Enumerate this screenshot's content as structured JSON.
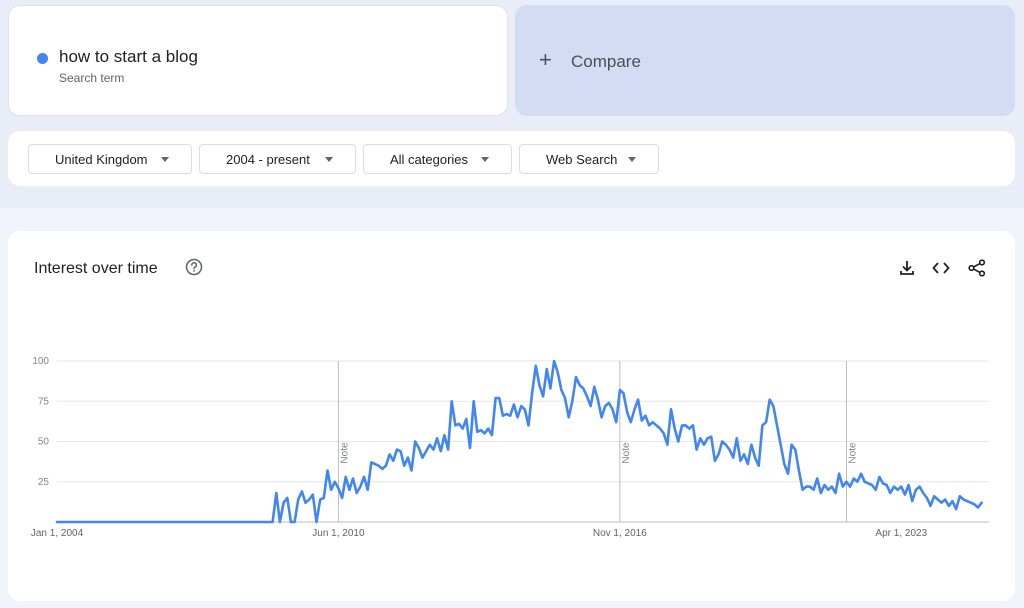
{
  "search": {
    "term": "how to start a blog",
    "term_sub": "Search term",
    "term_color": "#4285f4",
    "compare_icon": "+",
    "compare_label": "Compare"
  },
  "filters": [
    {
      "label": "United Kingdom",
      "icon": "caret-down-icon"
    },
    {
      "label": "2004 - present",
      "icon": "caret-down-icon"
    },
    {
      "label": "All categories",
      "icon": "caret-down-icon"
    },
    {
      "label": "Web Search",
      "icon": "caret-down-icon"
    }
  ],
  "chart_card": {
    "title": "Interest over time",
    "help_icon": "help-circle-icon",
    "tools": [
      "download-icon",
      "embed-code-icon",
      "share-icon"
    ]
  },
  "chart_data": {
    "type": "line",
    "title": "",
    "xlabel": "",
    "ylabel": "",
    "ylim": [
      0,
      100
    ],
    "y_ticks": [
      25,
      50,
      75,
      100
    ],
    "x_range": [
      "2004-01",
      "2025-04"
    ],
    "x_ticks": [
      {
        "date": "2004-01",
        "label": "Jan 1, 2004"
      },
      {
        "date": "2010-06",
        "label": "Jun 1, 2010"
      },
      {
        "date": "2016-11",
        "label": "Nov 1, 2016"
      },
      {
        "date": "2023-04",
        "label": "Apr 1, 2023"
      }
    ],
    "notes": [
      {
        "date": "2010-06",
        "label": "Note"
      },
      {
        "date": "2016-11",
        "label": "Note"
      },
      {
        "date": "2022-01",
        "label": "Note"
      }
    ],
    "grid": true,
    "line_color": "#4285f4",
    "series": [
      {
        "points": [
          [
            "2004-01",
            0
          ],
          [
            "2008-12",
            0
          ],
          [
            "2009-01",
            18
          ],
          [
            "2009-02",
            0
          ],
          [
            "2009-03",
            12
          ],
          [
            "2009-04",
            15
          ],
          [
            "2009-05",
            0
          ],
          [
            "2009-06",
            0
          ],
          [
            "2009-07",
            14
          ],
          [
            "2009-08",
            19
          ],
          [
            "2009-09",
            12
          ],
          [
            "2009-10",
            14
          ],
          [
            "2009-11",
            17
          ],
          [
            "2009-12",
            0
          ],
          [
            "2010-01",
            14
          ],
          [
            "2010-02",
            15
          ],
          [
            "2010-03",
            32
          ],
          [
            "2010-04",
            20
          ],
          [
            "2010-05",
            25
          ],
          [
            "2010-06",
            21
          ],
          [
            "2010-07",
            15
          ],
          [
            "2010-08",
            28
          ],
          [
            "2010-09",
            20
          ],
          [
            "2010-10",
            27
          ],
          [
            "2010-11",
            18
          ],
          [
            "2010-12",
            22
          ],
          [
            "2011-01",
            28
          ],
          [
            "2011-02",
            20
          ],
          [
            "2011-03",
            37
          ],
          [
            "2011-04",
            36
          ],
          [
            "2011-05",
            35
          ],
          [
            "2011-06",
            33
          ],
          [
            "2011-07",
            35
          ],
          [
            "2011-08",
            42
          ],
          [
            "2011-09",
            38
          ],
          [
            "2011-10",
            45
          ],
          [
            "2011-11",
            44
          ],
          [
            "2011-12",
            35
          ],
          [
            "2012-01",
            40
          ],
          [
            "2012-02",
            32
          ],
          [
            "2012-03",
            50
          ],
          [
            "2012-04",
            46
          ],
          [
            "2012-05",
            40
          ],
          [
            "2012-06",
            44
          ],
          [
            "2012-07",
            48
          ],
          [
            "2012-08",
            45
          ],
          [
            "2012-09",
            52
          ],
          [
            "2012-10",
            44
          ],
          [
            "2012-11",
            54
          ],
          [
            "2012-12",
            45
          ],
          [
            "2013-01",
            75
          ],
          [
            "2013-02",
            60
          ],
          [
            "2013-03",
            61
          ],
          [
            "2013-04",
            58
          ],
          [
            "2013-05",
            64
          ],
          [
            "2013-06",
            46
          ],
          [
            "2013-07",
            75
          ],
          [
            "2013-08",
            56
          ],
          [
            "2013-09",
            57
          ],
          [
            "2013-10",
            55
          ],
          [
            "2013-11",
            58
          ],
          [
            "2013-12",
            54
          ],
          [
            "2014-01",
            77
          ],
          [
            "2014-02",
            77
          ],
          [
            "2014-03",
            66
          ],
          [
            "2014-04",
            67
          ],
          [
            "2014-05",
            66
          ],
          [
            "2014-06",
            73
          ],
          [
            "2014-07",
            65
          ],
          [
            "2014-08",
            72
          ],
          [
            "2014-09",
            70
          ],
          [
            "2014-10",
            60
          ],
          [
            "2014-11",
            80
          ],
          [
            "2014-12",
            97
          ],
          [
            "2015-01",
            85
          ],
          [
            "2015-02",
            78
          ],
          [
            "2015-03",
            95
          ],
          [
            "2015-04",
            83
          ],
          [
            "2015-05",
            100
          ],
          [
            "2015-06",
            93
          ],
          [
            "2015-07",
            82
          ],
          [
            "2015-08",
            77
          ],
          [
            "2015-09",
            65
          ],
          [
            "2015-10",
            75
          ],
          [
            "2015-11",
            90
          ],
          [
            "2015-12",
            85
          ],
          [
            "2016-01",
            83
          ],
          [
            "2016-02",
            78
          ],
          [
            "2016-03",
            72
          ],
          [
            "2016-04",
            84
          ],
          [
            "2016-05",
            76
          ],
          [
            "2016-06",
            65
          ],
          [
            "2016-07",
            72
          ],
          [
            "2016-08",
            74
          ],
          [
            "2016-09",
            70
          ],
          [
            "2016-10",
            62
          ],
          [
            "2016-11",
            82
          ],
          [
            "2016-12",
            80
          ],
          [
            "2017-01",
            68
          ],
          [
            "2017-02",
            62
          ],
          [
            "2017-03",
            70
          ],
          [
            "2017-04",
            76
          ],
          [
            "2017-05",
            63
          ],
          [
            "2017-06",
            66
          ],
          [
            "2017-07",
            60
          ],
          [
            "2017-08",
            62
          ],
          [
            "2017-09",
            60
          ],
          [
            "2017-10",
            58
          ],
          [
            "2017-11",
            55
          ],
          [
            "2017-12",
            48
          ],
          [
            "2018-01",
            70
          ],
          [
            "2018-02",
            58
          ],
          [
            "2018-03",
            50
          ],
          [
            "2018-04",
            60
          ],
          [
            "2018-05",
            60
          ],
          [
            "2018-06",
            58
          ],
          [
            "2018-07",
            60
          ],
          [
            "2018-08",
            45
          ],
          [
            "2018-09",
            52
          ],
          [
            "2018-10",
            48
          ],
          [
            "2018-11",
            52
          ],
          [
            "2018-12",
            53
          ],
          [
            "2019-01",
            38
          ],
          [
            "2019-02",
            42
          ],
          [
            "2019-03",
            50
          ],
          [
            "2019-04",
            48
          ],
          [
            "2019-05",
            45
          ],
          [
            "2019-06",
            40
          ],
          [
            "2019-07",
            52
          ],
          [
            "2019-08",
            38
          ],
          [
            "2019-09",
            42
          ],
          [
            "2019-10",
            36
          ],
          [
            "2019-11",
            48
          ],
          [
            "2019-12",
            40
          ],
          [
            "2020-01",
            35
          ],
          [
            "2020-02",
            60
          ],
          [
            "2020-03",
            62
          ],
          [
            "2020-04",
            76
          ],
          [
            "2020-05",
            72
          ],
          [
            "2020-06",
            60
          ],
          [
            "2020-07",
            48
          ],
          [
            "2020-08",
            36
          ],
          [
            "2020-09",
            30
          ],
          [
            "2020-10",
            48
          ],
          [
            "2020-11",
            45
          ],
          [
            "2020-12",
            32
          ],
          [
            "2021-01",
            20
          ],
          [
            "2021-02",
            22
          ],
          [
            "2021-03",
            22
          ],
          [
            "2021-04",
            20
          ],
          [
            "2021-05",
            27
          ],
          [
            "2021-06",
            18
          ],
          [
            "2021-07",
            23
          ],
          [
            "2021-08",
            20
          ],
          [
            "2021-09",
            22
          ],
          [
            "2021-10",
            18
          ],
          [
            "2021-11",
            30
          ],
          [
            "2021-12",
            22
          ],
          [
            "2022-01",
            25
          ],
          [
            "2022-02",
            22
          ],
          [
            "2022-03",
            27
          ],
          [
            "2022-04",
            25
          ],
          [
            "2022-05",
            30
          ],
          [
            "2022-06",
            25
          ],
          [
            "2022-07",
            24
          ],
          [
            "2022-08",
            23
          ],
          [
            "2022-09",
            20
          ],
          [
            "2022-10",
            28
          ],
          [
            "2022-11",
            24
          ],
          [
            "2022-12",
            23
          ],
          [
            "2023-01",
            18
          ],
          [
            "2023-02",
            22
          ],
          [
            "2023-03",
            20
          ],
          [
            "2023-04",
            22
          ],
          [
            "2023-05",
            17
          ],
          [
            "2023-06",
            23
          ],
          [
            "2023-07",
            13
          ],
          [
            "2023-08",
            20
          ],
          [
            "2023-09",
            22
          ],
          [
            "2023-10",
            18
          ],
          [
            "2023-11",
            15
          ],
          [
            "2023-12",
            10
          ],
          [
            "2024-01",
            16
          ],
          [
            "2024-02",
            14
          ],
          [
            "2024-03",
            12
          ],
          [
            "2024-04",
            14
          ],
          [
            "2024-05",
            10
          ],
          [
            "2024-06",
            13
          ],
          [
            "2024-07",
            8
          ],
          [
            "2024-08",
            16
          ],
          [
            "2024-09",
            14
          ],
          [
            "2024-10",
            13
          ],
          [
            "2024-11",
            12
          ],
          [
            "2024-12",
            11
          ],
          [
            "2025-01",
            9
          ],
          [
            "2025-02",
            12
          ]
        ]
      }
    ]
  }
}
